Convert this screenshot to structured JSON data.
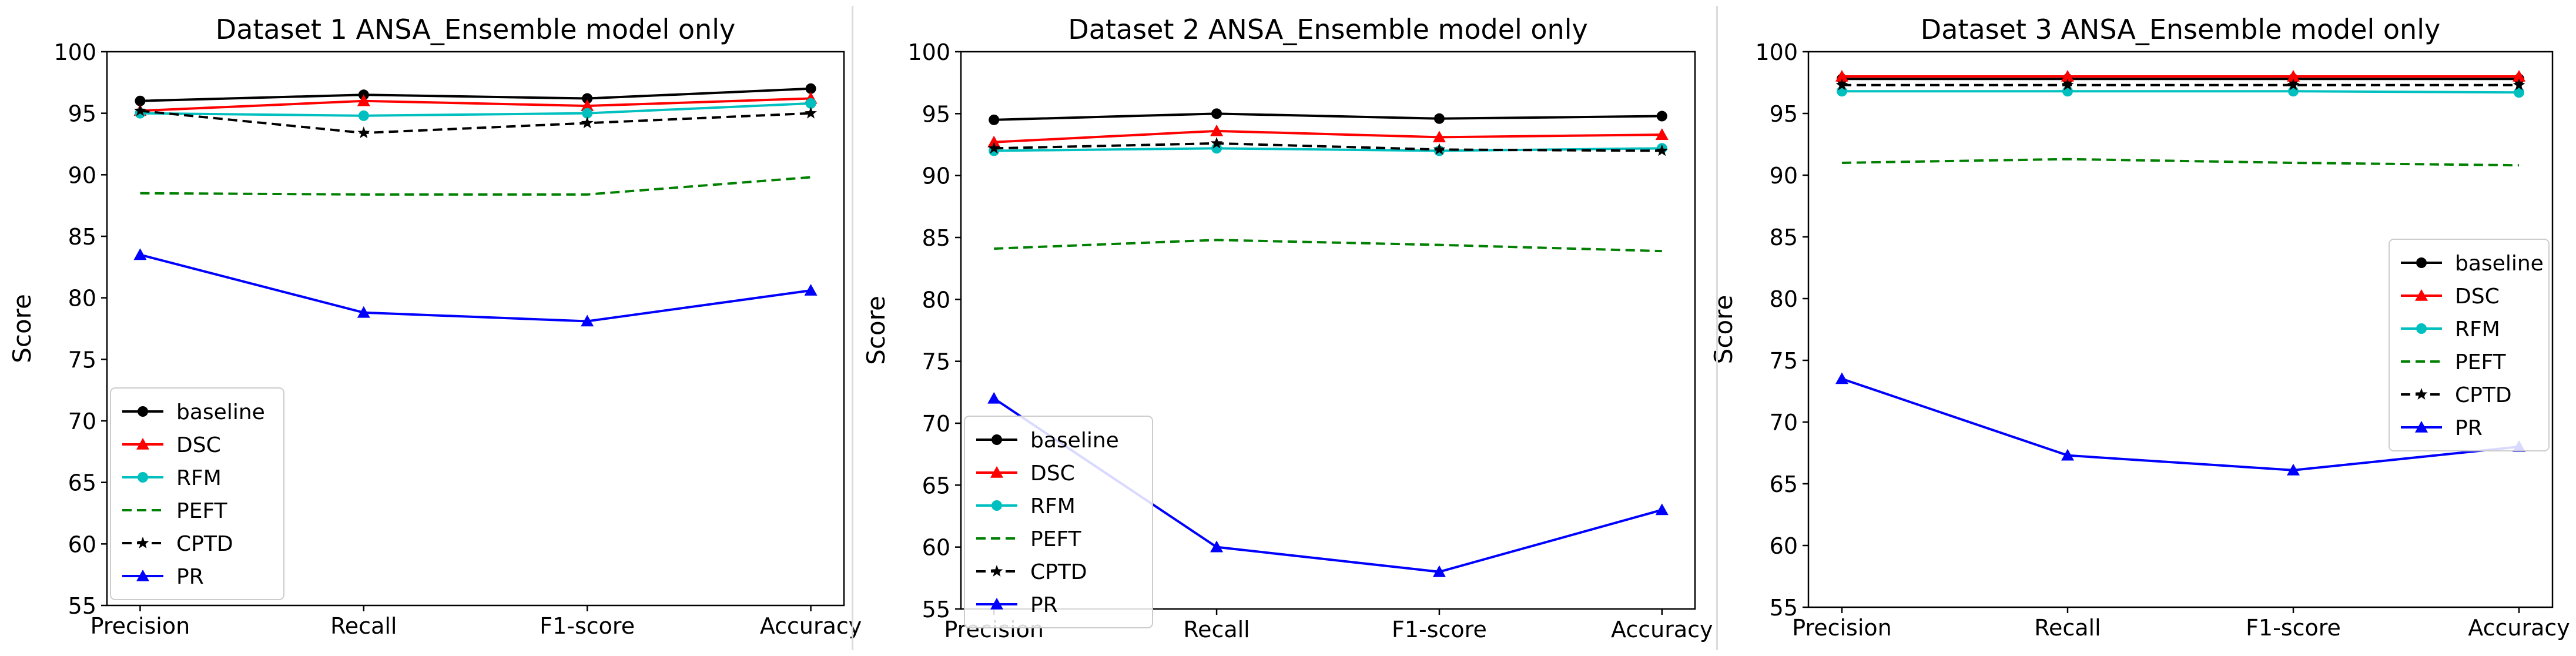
{
  "figure": {
    "metrics": [
      "Precision",
      "Recall",
      "F1-score",
      "Accuracy"
    ],
    "ylabel": "Score",
    "ylim": [
      55,
      100
    ],
    "yticks": [
      55,
      60,
      65,
      70,
      75,
      80,
      85,
      90,
      95,
      100
    ]
  },
  "chart_data": [
    {
      "type": "line",
      "title": "Dataset 1 ANSA_Ensemble model only",
      "xlabel": "",
      "ylabel": "Score",
      "categories": [
        "Precision",
        "Recall",
        "F1-score",
        "Accuracy"
      ],
      "ylim": [
        55,
        100
      ],
      "legend_position": "lower-left",
      "series": [
        {
          "name": "baseline",
          "color": "#000000",
          "style": "solid",
          "marker": "circle",
          "values": [
            96.0,
            96.5,
            96.2,
            97.0
          ]
        },
        {
          "name": "DSC",
          "color": "#ff0000",
          "style": "solid",
          "marker": "triangle",
          "values": [
            95.2,
            96.0,
            95.6,
            96.2
          ]
        },
        {
          "name": "RFM",
          "color": "#00bfbf",
          "style": "solid",
          "marker": "circle",
          "values": [
            95.0,
            94.8,
            95.0,
            95.8
          ]
        },
        {
          "name": "PEFT",
          "color": "#008000",
          "style": "dashed",
          "marker": "none",
          "values": [
            88.5,
            88.4,
            88.4,
            89.8
          ]
        },
        {
          "name": "CPTD",
          "color": "#000000",
          "style": "dashed",
          "marker": "star",
          "values": [
            95.2,
            93.4,
            94.2,
            95.0
          ]
        },
        {
          "name": "PR",
          "color": "#0000ff",
          "style": "solid",
          "marker": "triangle",
          "values": [
            83.5,
            78.8,
            78.1,
            80.6
          ]
        }
      ]
    },
    {
      "type": "line",
      "title": "Dataset 2 ANSA_Ensemble model only",
      "xlabel": "",
      "ylabel": "Score",
      "categories": [
        "Precision",
        "Recall",
        "F1-score",
        "Accuracy"
      ],
      "ylim": [
        55,
        100
      ],
      "legend_position": "lower-left",
      "series": [
        {
          "name": "baseline",
          "color": "#000000",
          "style": "solid",
          "marker": "circle",
          "values": [
            94.5,
            95.0,
            94.6,
            94.8
          ]
        },
        {
          "name": "DSC",
          "color": "#ff0000",
          "style": "solid",
          "marker": "triangle",
          "values": [
            92.7,
            93.6,
            93.1,
            93.3
          ]
        },
        {
          "name": "RFM",
          "color": "#00bfbf",
          "style": "solid",
          "marker": "circle",
          "values": [
            92.0,
            92.2,
            92.0,
            92.2
          ]
        },
        {
          "name": "PEFT",
          "color": "#008000",
          "style": "dashed",
          "marker": "none",
          "values": [
            84.1,
            84.8,
            84.4,
            83.9
          ]
        },
        {
          "name": "CPTD",
          "color": "#000000",
          "style": "dashed",
          "marker": "star",
          "values": [
            92.2,
            92.6,
            92.1,
            92.0
          ]
        },
        {
          "name": "PR",
          "color": "#0000ff",
          "style": "solid",
          "marker": "triangle",
          "values": [
            72.0,
            60.0,
            58.0,
            63.0
          ]
        }
      ]
    },
    {
      "type": "line",
      "title": "Dataset 3 ANSA_Ensemble model only",
      "xlabel": "",
      "ylabel": "Score",
      "categories": [
        "Precision",
        "Recall",
        "F1-score",
        "Accuracy"
      ],
      "ylim": [
        55,
        100
      ],
      "legend_position": "center-right",
      "series": [
        {
          "name": "baseline",
          "color": "#000000",
          "style": "solid",
          "marker": "circle",
          "values": [
            97.8,
            97.8,
            97.8,
            97.8
          ]
        },
        {
          "name": "DSC",
          "color": "#ff0000",
          "style": "solid",
          "marker": "triangle",
          "values": [
            98.0,
            98.0,
            98.0,
            98.0
          ]
        },
        {
          "name": "RFM",
          "color": "#00bfbf",
          "style": "solid",
          "marker": "circle",
          "values": [
            96.8,
            96.8,
            96.8,
            96.7
          ]
        },
        {
          "name": "PEFT",
          "color": "#008000",
          "style": "dashed",
          "marker": "none",
          "values": [
            91.0,
            91.3,
            91.0,
            90.8
          ]
        },
        {
          "name": "CPTD",
          "color": "#000000",
          "style": "dashed",
          "marker": "star",
          "values": [
            97.3,
            97.3,
            97.3,
            97.3
          ]
        },
        {
          "name": "PR",
          "color": "#0000ff",
          "style": "solid",
          "marker": "triangle",
          "values": [
            73.5,
            67.3,
            66.1,
            68.0
          ]
        }
      ]
    }
  ]
}
